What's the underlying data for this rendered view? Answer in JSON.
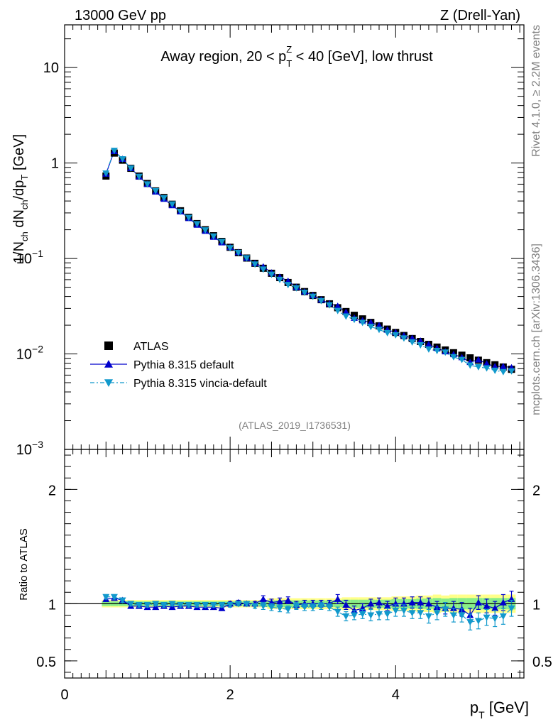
{
  "header": {
    "energy_label": "13000 GeV pp",
    "process_label": "Z (Drell-Yan)",
    "side_label_top": "Rivet 4.1.0, ≥ 2.2M events",
    "side_label_bottom": "mcplots.cern.ch [arXiv:1306.3436]",
    "analysis_id": "(ATLAS_2019_I1736531)"
  },
  "colors": {
    "atlas": "#000000",
    "pythia_default": "#0000cc",
    "pythia_vincia": "#1199cc",
    "band_green": "#88ee88",
    "band_yellow": "#ffff88"
  },
  "chart_data": [
    {
      "type": "scatter",
      "panel": "main",
      "title": "Away region, 20 < p_T^Z < 40 [GeV], low thrust",
      "title_parts": {
        "prefix": "Away region, 20 < p",
        "sub": "T",
        "sup": "Z",
        "suffix": " < 40 [GeV], low thrust"
      },
      "ylabel": "1/N_ch dN_ch/dp_T [GeV]",
      "ylabel_parts": {
        "a": "1/N",
        "a_sub": "ch",
        "b": " dN",
        "b_sub": "ch",
        "c": "/dp",
        "c_sub": "T",
        "d": " [GeV]"
      },
      "yscale": "log",
      "ylim": [
        0.001,
        28
      ],
      "y_ticks": [
        {
          "value": 10,
          "label": "10"
        },
        {
          "value": 1,
          "label": "1"
        },
        {
          "value": 0.1,
          "label": "10",
          "exp": "−1"
        },
        {
          "value": 0.01,
          "label": "10",
          "exp": "−2"
        },
        {
          "value": 0.001,
          "label": "10",
          "exp": "−3"
        }
      ],
      "xlim": [
        0,
        5.55
      ],
      "legend": {
        "position": "lower-left",
        "entries": [
          "ATLAS",
          "Pythia 8.315 default",
          "Pythia 8.315 vincia-default"
        ]
      },
      "x": [
        0.5,
        0.6,
        0.7,
        0.8,
        0.9,
        1.0,
        1.1,
        1.2,
        1.3,
        1.4,
        1.5,
        1.6,
        1.7,
        1.8,
        1.9,
        2.0,
        2.1,
        2.2,
        2.3,
        2.4,
        2.5,
        2.6,
        2.7,
        2.8,
        2.9,
        3.0,
        3.1,
        3.2,
        3.3,
        3.4,
        3.5,
        3.6,
        3.7,
        3.8,
        3.9,
        4.0,
        4.1,
        4.2,
        4.3,
        4.4,
        4.5,
        4.6,
        4.7,
        4.8,
        4.9,
        5.0,
        5.1,
        5.2,
        5.3,
        5.4
      ],
      "series": [
        {
          "name": "ATLAS",
          "marker": "square",
          "values": [
            0.73,
            1.27,
            1.07,
            0.88,
            0.73,
            0.61,
            0.51,
            0.435,
            0.37,
            0.316,
            0.27,
            0.232,
            0.2,
            0.173,
            0.151,
            0.131,
            0.115,
            0.101,
            0.089,
            0.079,
            0.07,
            0.063,
            0.056,
            0.05,
            0.045,
            0.041,
            0.037,
            0.0335,
            0.0305,
            0.0278,
            0.0254,
            0.0233,
            0.0214,
            0.0197,
            0.0182,
            0.0168,
            0.0156,
            0.0145,
            0.0135,
            0.0126,
            0.0118,
            0.011,
            0.0103,
            0.0097,
            0.0091,
            0.0086,
            0.0081,
            0.0077,
            0.0073,
            0.0069
          ]
        },
        {
          "name": "Pythia 8.315 default",
          "marker": "triangle-up",
          "values": [
            0.77,
            1.33,
            1.1,
            0.88,
            0.72,
            0.6,
            0.5,
            0.42,
            0.36,
            0.31,
            0.264,
            0.225,
            0.194,
            0.168,
            0.147,
            0.131,
            0.116,
            0.101,
            0.089,
            0.082,
            0.071,
            0.064,
            0.058,
            0.05,
            0.045,
            0.041,
            0.037,
            0.0337,
            0.0317,
            0.0274,
            0.0238,
            0.0224,
            0.0214,
            0.0199,
            0.0179,
            0.0168,
            0.0156,
            0.0146,
            0.0137,
            0.0126,
            0.0115,
            0.0106,
            0.0099,
            0.0092,
            0.0082,
            0.0087,
            0.0079,
            0.0074,
            0.0074,
            0.0072
          ]
        },
        {
          "name": "Pythia 8.315 vincia-default",
          "marker": "triangle-down",
          "values": [
            0.78,
            1.35,
            1.1,
            0.88,
            0.72,
            0.6,
            0.51,
            0.43,
            0.37,
            0.31,
            0.268,
            0.23,
            0.198,
            0.171,
            0.15,
            0.129,
            0.115,
            0.101,
            0.087,
            0.077,
            0.068,
            0.06,
            0.053,
            0.049,
            0.044,
            0.04,
            0.036,
            0.0325,
            0.0284,
            0.0248,
            0.0229,
            0.0213,
            0.0193,
            0.018,
            0.0166,
            0.0158,
            0.0146,
            0.0133,
            0.0124,
            0.0112,
            0.0108,
            0.0104,
            0.0093,
            0.0087,
            0.0076,
            0.0073,
            0.0071,
            0.0067,
            0.0065,
            0.0066
          ]
        }
      ]
    },
    {
      "type": "scatter",
      "panel": "ratio",
      "ylabel": "Ratio to ATLAS",
      "xlabel": "p_T [GeV]",
      "xlabel_parts": {
        "a": "p",
        "sub": "T",
        "b": " [GeV]"
      },
      "xlim": [
        0,
        5.55
      ],
      "ylim": [
        0.35,
        2.35
      ],
      "x_ticks": [
        {
          "value": 0,
          "label": "0"
        },
        {
          "value": 2,
          "label": "2"
        },
        {
          "value": 4,
          "label": "4"
        }
      ],
      "y_ticks": [
        {
          "value": 0.5,
          "label": "0.5"
        },
        {
          "value": 1,
          "label": "1"
        },
        {
          "value": 2,
          "label": "2"
        }
      ],
      "reference_line": 1,
      "x": [
        0.5,
        0.6,
        0.7,
        0.8,
        0.9,
        1.0,
        1.1,
        1.2,
        1.3,
        1.4,
        1.5,
        1.6,
        1.7,
        1.8,
        1.9,
        2.0,
        2.1,
        2.2,
        2.3,
        2.4,
        2.5,
        2.6,
        2.7,
        2.8,
        2.9,
        3.0,
        3.1,
        3.2,
        3.3,
        3.4,
        3.5,
        3.6,
        3.7,
        3.8,
        3.9,
        4.0,
        4.1,
        4.2,
        4.3,
        4.4,
        4.5,
        4.6,
        4.7,
        4.8,
        4.9,
        5.0,
        5.1,
        5.2,
        5.3,
        5.4
      ],
      "band_halfwidth": [
        0.02,
        0.02,
        0.02,
        0.02,
        0.02,
        0.02,
        0.02,
        0.02,
        0.02,
        0.02,
        0.02,
        0.02,
        0.02,
        0.02,
        0.02,
        0.02,
        0.02,
        0.02,
        0.02,
        0.02,
        0.03,
        0.03,
        0.03,
        0.03,
        0.03,
        0.03,
        0.03,
        0.03,
        0.03,
        0.035,
        0.035,
        0.035,
        0.035,
        0.035,
        0.035,
        0.04,
        0.04,
        0.04,
        0.045,
        0.045,
        0.05,
        0.045,
        0.05,
        0.05,
        0.05,
        0.05,
        0.05,
        0.05,
        0.05,
        0.05
      ],
      "series": [
        {
          "name": "Pythia 8.315 default",
          "marker": "triangle-up",
          "values": [
            1.04,
            1.05,
            1.03,
            0.98,
            0.98,
            0.97,
            0.97,
            0.98,
            0.97,
            0.98,
            0.98,
            0.97,
            0.97,
            0.97,
            0.96,
            1.0,
            1.01,
            1.0,
            1.0,
            1.04,
            1.01,
            1.02,
            1.03,
            0.99,
            1.0,
            1.0,
            1.0,
            1.0,
            1.04,
            0.99,
            0.94,
            0.96,
            1.0,
            1.01,
            0.98,
            1.0,
            1.0,
            1.01,
            1.01,
            1.0,
            0.97,
            0.96,
            0.96,
            0.95,
            0.9,
            1.01,
            0.98,
            0.96,
            1.01,
            1.04
          ],
          "errors": [
            0.02,
            0.02,
            0.02,
            0.02,
            0.02,
            0.02,
            0.02,
            0.02,
            0.02,
            0.02,
            0.02,
            0.02,
            0.02,
            0.02,
            0.02,
            0.02,
            0.02,
            0.02,
            0.02,
            0.03,
            0.03,
            0.03,
            0.03,
            0.03,
            0.03,
            0.03,
            0.03,
            0.03,
            0.04,
            0.04,
            0.04,
            0.04,
            0.04,
            0.04,
            0.04,
            0.05,
            0.05,
            0.05,
            0.05,
            0.05,
            0.05,
            0.05,
            0.06,
            0.06,
            0.06,
            0.06,
            0.06,
            0.06,
            0.07,
            0.07
          ]
        },
        {
          "name": "Pythia 8.315 vincia-default",
          "marker": "triangle-down",
          "values": [
            1.06,
            1.06,
            1.03,
            1.0,
            0.99,
            0.99,
            1.0,
            0.99,
            1.0,
            0.99,
            0.99,
            0.99,
            0.99,
            0.99,
            0.99,
            0.99,
            1.0,
            1.0,
            0.98,
            0.98,
            0.97,
            0.96,
            0.95,
            0.98,
            0.97,
            0.97,
            0.98,
            0.97,
            0.93,
            0.89,
            0.9,
            0.91,
            0.9,
            0.91,
            0.91,
            0.94,
            0.94,
            0.92,
            0.92,
            0.89,
            0.92,
            0.95,
            0.9,
            0.9,
            0.84,
            0.85,
            0.88,
            0.87,
            0.89,
            0.96
          ],
          "errors": [
            0.02,
            0.02,
            0.02,
            0.02,
            0.02,
            0.02,
            0.02,
            0.02,
            0.02,
            0.02,
            0.02,
            0.02,
            0.02,
            0.02,
            0.02,
            0.02,
            0.02,
            0.02,
            0.02,
            0.03,
            0.03,
            0.03,
            0.03,
            0.03,
            0.03,
            0.03,
            0.03,
            0.03,
            0.04,
            0.04,
            0.04,
            0.04,
            0.05,
            0.05,
            0.05,
            0.05,
            0.05,
            0.05,
            0.05,
            0.06,
            0.06,
            0.06,
            0.06,
            0.06,
            0.07,
            0.07,
            0.07,
            0.07,
            0.07,
            0.07
          ]
        }
      ]
    }
  ]
}
